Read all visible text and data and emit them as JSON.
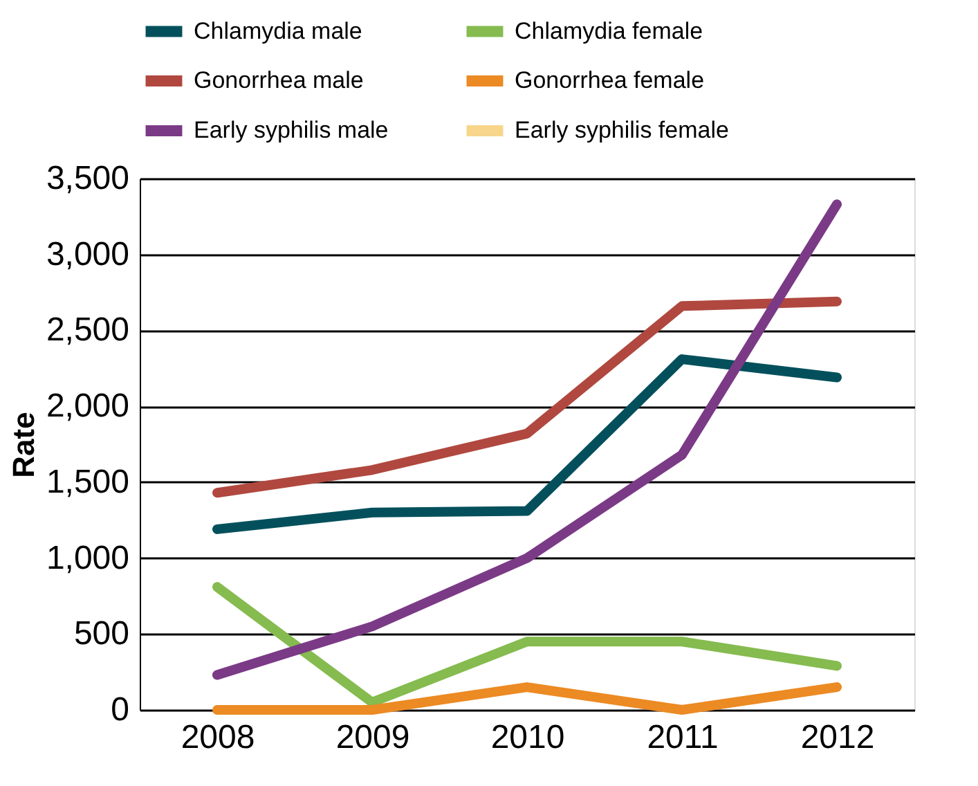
{
  "chart_data": {
    "type": "line",
    "ylabel": "Rate",
    "categories": [
      "2008",
      "2009",
      "2010",
      "2011",
      "2012"
    ],
    "series": [
      {
        "name": "Chlamydia male",
        "color": "#03505c",
        "values": [
          1190,
          1300,
          1310,
          2310,
          2190
        ]
      },
      {
        "name": "Chlamydia female",
        "color": "#85bb4f",
        "values": [
          810,
          50,
          450,
          450,
          290
        ]
      },
      {
        "name": "Gonorrhea male",
        "color": "#b0483f",
        "values": [
          1430,
          1580,
          1820,
          2660,
          2690
        ]
      },
      {
        "name": "Gonorrhea female",
        "color": "#ec8a23",
        "values": [
          0,
          0,
          150,
          0,
          150
        ]
      },
      {
        "name": "Early syphilis male",
        "color": "#7b3a86",
        "values": [
          230,
          550,
          1000,
          1680,
          3330
        ]
      },
      {
        "name": "Early syphilis female",
        "color": "#f7d58a",
        "values": [
          null,
          null,
          null,
          null,
          null
        ]
      }
    ],
    "ylim": [
      0,
      3500
    ],
    "yticks": [
      0,
      500,
      {
        "value": 1000,
        "label": "1,000"
      },
      {
        "value": 1500,
        "label": "1,500"
      },
      {
        "value": 2000,
        "label": "2,000"
      },
      {
        "value": 2500,
        "label": "2,500"
      },
      {
        "value": 3000,
        "label": "3,000"
      },
      {
        "value": 3500,
        "label": "3,500"
      }
    ],
    "grid": "y",
    "legend": "top",
    "marker": "none",
    "line_style": "solid"
  }
}
